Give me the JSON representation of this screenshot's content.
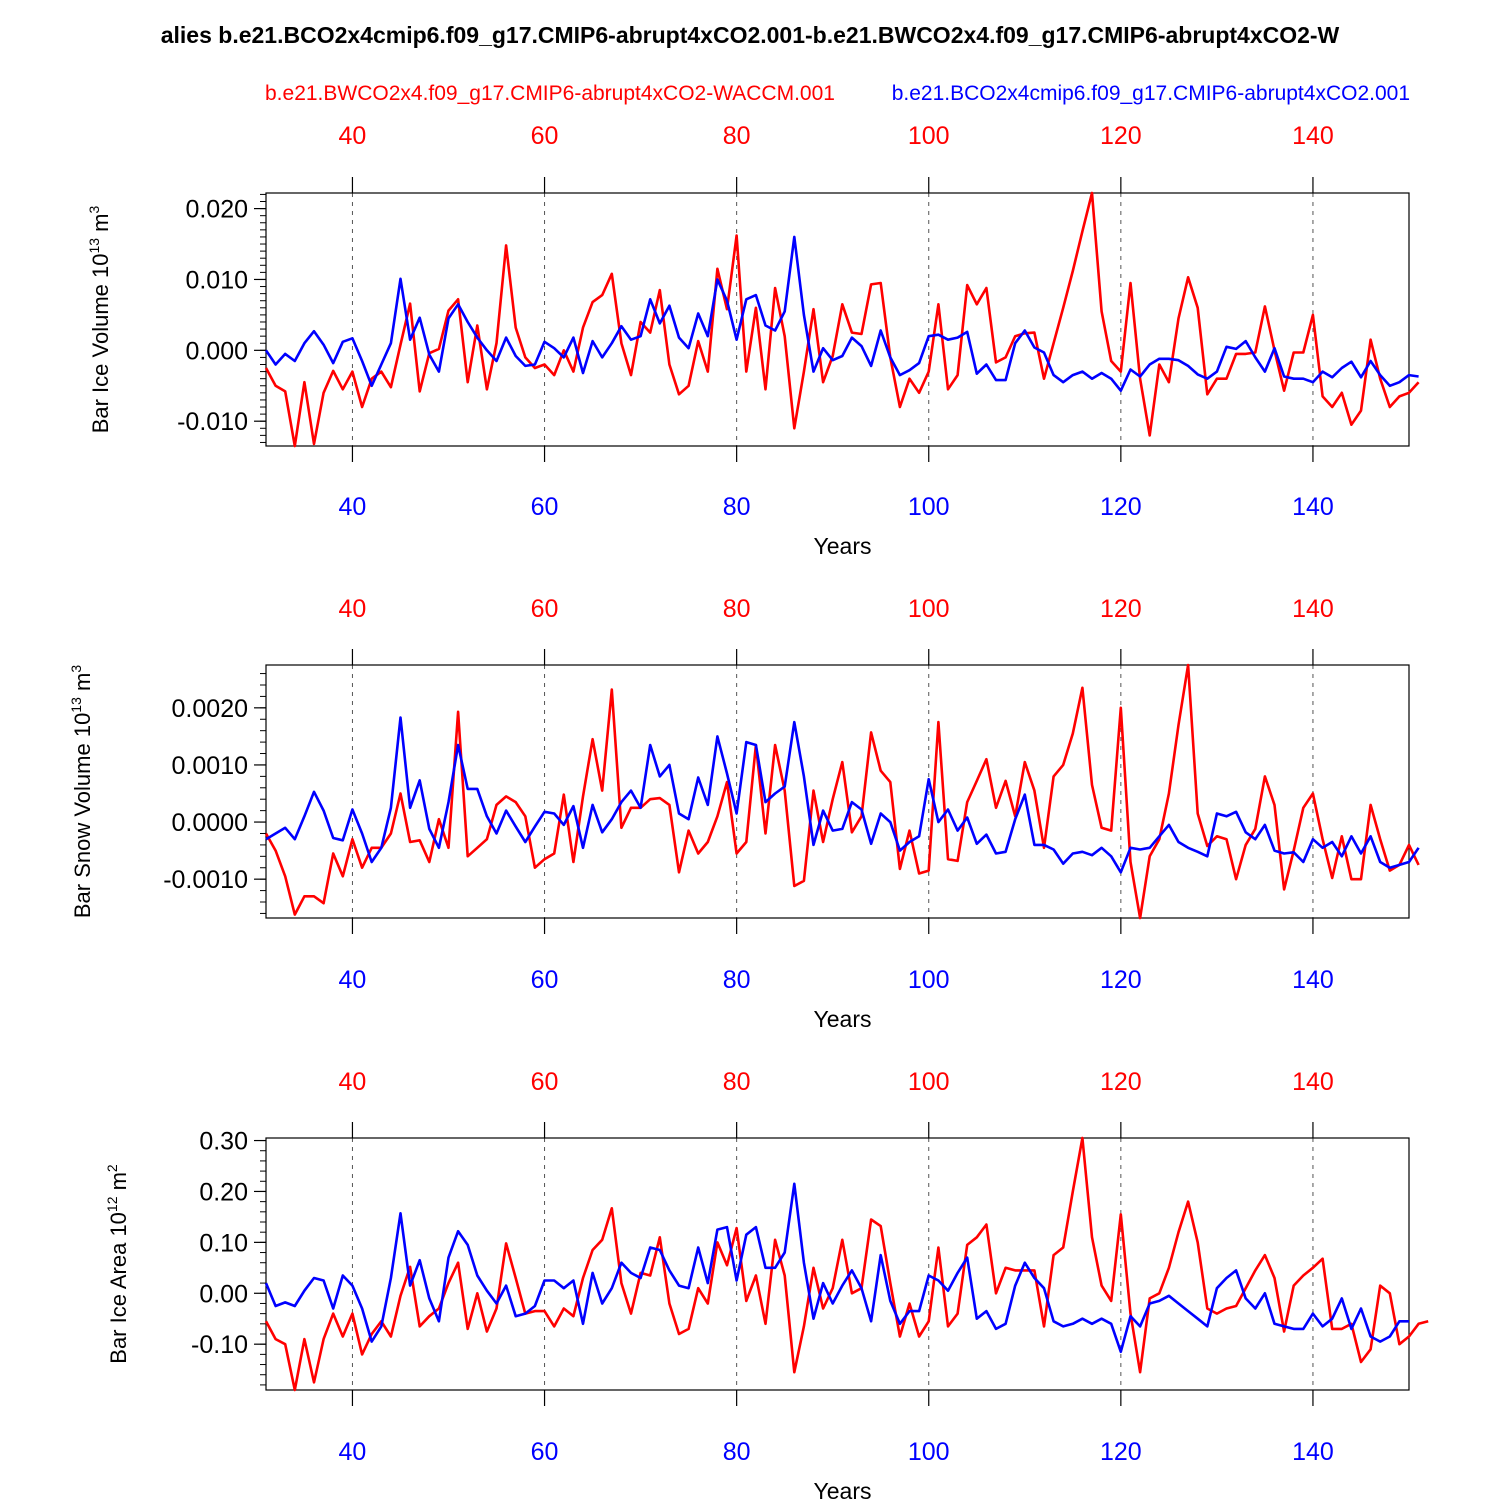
{
  "title": "alies b.e21.BCO2x4cmip6.f09_g17.CMIP6-abrupt4xCO2.001-b.e21.BWCO2x4.f09_g17.CMIP6-abrupt4xCO2-W",
  "legend": {
    "red_label": "b.e21.BWCO2x4.f09_g17.CMIP6-abrupt4xCO2-WACCM.001",
    "blue_label": "b.e21.BCO2x4cmip6.f09_g17.CMIP6-abrupt4xCO2.001"
  },
  "colors": {
    "red": "#ff0000",
    "blue": "#0000ff",
    "axis": "#000000",
    "grid": "#555555"
  },
  "chart_data": [
    {
      "type": "line",
      "ylabel": "Bar Ice Volume 10",
      "ylabel_exp": "13",
      "ylabel_unit": "m",
      "ylabel_unit_exp": "3",
      "xlabel": "Years",
      "xlim": [
        31,
        150
      ],
      "ylim": [
        -0.0135,
        0.0222
      ],
      "yticks": [
        -0.01,
        0.0,
        0.01,
        0.02
      ],
      "ytick_labels": [
        "-0.010",
        "0.000",
        "0.010",
        "0.020"
      ],
      "yminor_step": 0.001,
      "xticks": [
        40,
        60,
        80,
        100,
        120,
        140
      ],
      "x_start": 31,
      "series": [
        {
          "name": "b.e21.BWCO2x4.f09_g17.CMIP6-abrupt4xCO2-WACCM.001",
          "color": "#ff0000",
          "values": [
            -0.0025,
            -0.005,
            -0.0058,
            -0.0135,
            -0.0045,
            -0.0132,
            -0.006,
            -0.0029,
            -0.0055,
            -0.003,
            -0.008,
            -0.004,
            -0.003,
            -0.0052,
            0.0008,
            0.0066,
            -0.0058,
            -0.0004,
            0.0002,
            0.0056,
            0.0072,
            -0.0045,
            0.0035,
            -0.0055,
            0.001,
            0.0148,
            0.0032,
            -0.001,
            -0.0025,
            -0.002,
            -0.0035,
            0.0,
            -0.003,
            0.0032,
            0.0068,
            0.0078,
            0.0108,
            0.001,
            -0.0035,
            0.004,
            0.0025,
            0.0085,
            -0.002,
            -0.0062,
            -0.005,
            0.0013,
            -0.003,
            0.0115,
            0.0058,
            0.0162,
            -0.003,
            0.006,
            -0.0055,
            0.0088,
            0.002,
            -0.011,
            -0.003,
            0.0058,
            -0.0045,
            -0.0008,
            0.0065,
            0.0025,
            0.0023,
            0.0093,
            0.0095,
            -0.001,
            -0.008,
            -0.004,
            -0.006,
            -0.003,
            0.0065,
            -0.0055,
            -0.0035,
            0.0092,
            0.0065,
            0.0088,
            -0.0017,
            -0.001,
            0.002,
            0.0024,
            0.0025,
            -0.004,
            0.001,
            0.006,
            0.0112,
            0.0168,
            0.0222,
            0.0055,
            -0.0015,
            -0.003,
            0.0095,
            -0.004,
            -0.012,
            -0.002,
            -0.0045,
            0.0045,
            0.0103,
            0.006,
            -0.0062,
            -0.004,
            -0.004,
            -0.0005,
            -0.0005,
            -0.0003,
            0.0062,
            0.0,
            -0.0057,
            -0.0003,
            -0.0003,
            0.005,
            -0.0065,
            -0.008,
            -0.006,
            -0.0105,
            -0.0085,
            0.0015,
            -0.004,
            -0.008,
            -0.0065,
            -0.006,
            -0.0045
          ]
        },
        {
          "name": "b.e21.BCO2x4cmip6.f09_g17.CMIP6-abrupt4xCO2.001",
          "color": "#0000ff",
          "values": [
            0.0,
            -0.002,
            -0.0005,
            -0.0015,
            0.001,
            0.0027,
            0.0008,
            -0.0018,
            0.0012,
            0.0017,
            -0.0015,
            -0.005,
            -0.002,
            0.001,
            0.0101,
            0.0015,
            0.0046,
            -0.0006,
            -0.003,
            0.0045,
            0.0065,
            0.004,
            0.0018,
            0.0,
            -0.0015,
            0.0018,
            -0.0008,
            -0.0022,
            -0.002,
            0.0012,
            0.0003,
            -0.001,
            0.0018,
            -0.0032,
            0.0013,
            -0.001,
            0.001,
            0.0034,
            0.0015,
            0.002,
            0.0072,
            0.0038,
            0.0063,
            0.0018,
            0.0003,
            0.0052,
            0.002,
            0.01,
            0.007,
            0.0015,
            0.0072,
            0.0078,
            0.0035,
            0.0028,
            0.0055,
            0.016,
            0.005,
            -0.003,
            0.0003,
            -0.0014,
            -0.0008,
            0.0018,
            0.0006,
            -0.0022,
            0.0028,
            -0.001,
            -0.0035,
            -0.0028,
            -0.0018,
            0.002,
            0.0022,
            0.0015,
            0.0018,
            0.0026,
            -0.0033,
            -0.002,
            -0.0042,
            -0.0042,
            0.001,
            0.0028,
            0.0004,
            -0.0003,
            -0.0035,
            -0.0045,
            -0.0035,
            -0.003,
            -0.004,
            -0.0032,
            -0.004,
            -0.0057,
            -0.0027,
            -0.0037,
            -0.002,
            -0.0012,
            -0.0012,
            -0.0014,
            -0.0022,
            -0.0034,
            -0.004,
            -0.003,
            0.0005,
            0.0002,
            0.0013,
            -0.001,
            -0.003,
            0.0003,
            -0.0037,
            -0.004,
            -0.004,
            -0.0045,
            -0.003,
            -0.0038,
            -0.0025,
            -0.0016,
            -0.0038,
            -0.0015,
            -0.0035,
            -0.005,
            -0.0045,
            -0.0035,
            -0.0037
          ]
        }
      ]
    },
    {
      "type": "line",
      "ylabel": "Bar Snow Volume 10",
      "ylabel_exp": "13",
      "ylabel_unit": "m",
      "ylabel_unit_exp": "3",
      "xlabel": "Years",
      "xlim": [
        31,
        150
      ],
      "ylim": [
        -0.00168,
        0.00275
      ],
      "yticks": [
        -0.001,
        0.0,
        0.001,
        0.002
      ],
      "ytick_labels": [
        "-0.0010",
        "0.0000",
        "0.0010",
        "0.0020"
      ],
      "yminor_step": 0.0002,
      "xticks": [
        40,
        60,
        80,
        100,
        120,
        140
      ],
      "x_start": 31,
      "series": [
        {
          "name": "b.e21.BWCO2x4.f09_g17.CMIP6-abrupt4xCO2-WACCM.001",
          "color": "#ff0000",
          "values": [
            -0.0002,
            -0.0005,
            -0.00095,
            -0.00162,
            -0.0013,
            -0.0013,
            -0.00142,
            -0.00055,
            -0.00095,
            -0.0003,
            -0.0008,
            -0.00045,
            -0.00045,
            -0.0002,
            0.0005,
            -0.00035,
            -0.00032,
            -0.0007,
            5e-05,
            -0.00045,
            0.00193,
            -0.0006,
            -0.00045,
            -0.0003,
            0.0003,
            0.00045,
            0.00035,
            0.0001,
            -0.0008,
            -0.00065,
            -0.00055,
            0.00048,
            -0.0007,
            0.00045,
            0.00145,
            0.00055,
            0.00232,
            -0.0001,
            0.00025,
            0.00025,
            0.0004,
            0.00042,
            0.0003,
            -0.00088,
            -0.00015,
            -0.00055,
            -0.00035,
            0.0001,
            0.0007,
            -0.00055,
            -0.00035,
            0.00135,
            -0.0002,
            0.00135,
            0.00055,
            -0.00112,
            -0.00103,
            0.00055,
            -0.00035,
            0.0004,
            0.00105,
            -0.00018,
            0.0001,
            0.00157,
            0.0009,
            0.0007,
            -0.00082,
            -0.00015,
            -0.0009,
            -0.00085,
            0.00175,
            -0.00065,
            -0.00068,
            0.00035,
            0.00072,
            0.0011,
            0.00025,
            0.00072,
            0.0001,
            0.00105,
            0.00055,
            -0.00045,
            0.0008,
            0.001,
            0.00155,
            0.00235,
            0.00065,
            -0.0001,
            -0.00015,
            0.002,
            -0.0007,
            -0.00168,
            -0.0006,
            -0.0003,
            0.0005,
            0.0017,
            0.00275,
            0.00015,
            -0.00042,
            -0.00025,
            -0.0003,
            -0.001,
            -0.0004,
            -0.00012,
            0.0008,
            0.0003,
            -0.00118,
            -0.0005,
            0.00025,
            0.0005,
            -0.0003,
            -0.00098,
            -0.00025,
            -0.001,
            -0.001,
            0.0003,
            -0.0003,
            -0.00085,
            -0.00075,
            -0.0004,
            -0.00075
          ]
        },
        {
          "name": "b.e21.BCO2x4cmip6.f09_g17.CMIP6-abrupt4xCO2.001",
          "color": "#0000ff",
          "values": [
            -0.0003,
            -0.0002,
            -0.0001,
            -0.0003,
            0.0001,
            0.00053,
            0.0002,
            -0.00028,
            -0.00032,
            0.00022,
            -0.0002,
            -0.0007,
            -0.00045,
            0.00025,
            0.00183,
            0.00025,
            0.00073,
            -0.00012,
            -0.00045,
            0.00035,
            0.00135,
            0.00058,
            0.00058,
            0.0001,
            -0.0002,
            0.0002,
            -8e-05,
            -0.00035,
            -8e-05,
            0.00018,
            0.00015,
            -5e-05,
            0.00028,
            -0.00045,
            0.0003,
            -0.00018,
            5e-05,
            0.00035,
            0.00055,
            0.00025,
            0.00135,
            0.0008,
            0.001,
            0.00015,
            5e-05,
            0.00078,
            0.0003,
            0.0015,
            0.00085,
            0.00015,
            0.0014,
            0.00135,
            0.00035,
            0.0005,
            0.00062,
            0.00175,
            0.0008,
            -0.0004,
            0.0002,
            -0.00015,
            -0.00012,
            0.00035,
            0.00022,
            -0.00038,
            0.00015,
            0.0,
            -0.0005,
            -0.00035,
            -0.00025,
            0.00075,
            0.0,
            0.00022,
            -0.00015,
            8e-05,
            -0.00038,
            -0.00022,
            -0.00055,
            -0.00052,
            5e-05,
            0.00048,
            -0.0004,
            -0.0004,
            -0.00048,
            -0.00073,
            -0.00055,
            -0.00052,
            -0.00058,
            -0.00045,
            -0.0006,
            -0.00088,
            -0.00045,
            -0.00048,
            -0.00045,
            -0.00025,
            -5e-05,
            -0.00035,
            -0.00045,
            -0.00052,
            -0.0006,
            0.00015,
            0.0001,
            0.00018,
            -0.00018,
            -0.0003,
            -5e-05,
            -0.0005,
            -0.00055,
            -0.00053,
            -0.0007,
            -0.0003,
            -0.00045,
            -0.00035,
            -0.0006,
            -0.00025,
            -0.00055,
            -0.00025,
            -0.0007,
            -0.0008,
            -0.00075,
            -0.0007,
            -0.00045
          ]
        }
      ]
    },
    {
      "type": "line",
      "ylabel": "Bar Ice Area 10",
      "ylabel_exp": "12",
      "ylabel_unit": "m",
      "ylabel_unit_exp": "2",
      "xlabel": "Years",
      "xlim": [
        31,
        150
      ],
      "ylim": [
        -0.19,
        0.305
      ],
      "yticks": [
        -0.1,
        0.0,
        0.1,
        0.2,
        0.3
      ],
      "ytick_labels": [
        "-0.10",
        "0.00",
        "0.10",
        "0.20",
        "0.30"
      ],
      "yminor_step": 0.02,
      "xticks": [
        40,
        60,
        80,
        100,
        120,
        140
      ],
      "x_start": 31,
      "series": [
        {
          "name": "b.e21.BWCO2x4.f09_g17.CMIP6-abrupt4xCO2-WACCM.001",
          "color": "#ff0000",
          "values": [
            -0.055,
            -0.09,
            -0.1,
            -0.19,
            -0.09,
            -0.175,
            -0.09,
            -0.04,
            -0.085,
            -0.04,
            -0.12,
            -0.08,
            -0.055,
            -0.085,
            -0.005,
            0.052,
            -0.065,
            -0.045,
            -0.03,
            0.02,
            0.06,
            -0.07,
            0.0,
            -0.075,
            -0.03,
            0.098,
            0.03,
            -0.04,
            -0.035,
            -0.035,
            -0.065,
            -0.03,
            -0.045,
            0.03,
            0.085,
            0.105,
            0.167,
            0.02,
            -0.04,
            0.04,
            0.035,
            0.11,
            -0.02,
            -0.08,
            -0.07,
            0.01,
            -0.02,
            0.1,
            0.055,
            0.128,
            -0.015,
            0.035,
            -0.06,
            0.105,
            0.035,
            -0.155,
            -0.065,
            0.05,
            -0.03,
            0.01,
            0.105,
            0.0,
            0.01,
            0.145,
            0.132,
            0.02,
            -0.085,
            -0.02,
            -0.085,
            -0.055,
            0.09,
            -0.065,
            -0.04,
            0.095,
            0.11,
            0.135,
            0.0,
            0.05,
            0.045,
            0.045,
            0.045,
            -0.065,
            0.075,
            0.09,
            0.2,
            0.305,
            0.11,
            0.015,
            -0.015,
            0.155,
            -0.04,
            -0.155,
            -0.01,
            0.0,
            0.05,
            0.12,
            0.18,
            0.1,
            -0.03,
            -0.04,
            -0.03,
            -0.025,
            0.01,
            0.045,
            0.075,
            0.03,
            -0.075,
            0.015,
            0.035,
            0.05,
            0.068,
            -0.07,
            -0.07,
            -0.06,
            -0.135,
            -0.11,
            0.015,
            0.0,
            -0.1,
            -0.085,
            -0.06,
            -0.055
          ]
        },
        {
          "name": "b.e21.BCO2x4cmip6.f09_g17.CMIP6-abrupt4xCO2.001",
          "color": "#0000ff",
          "values": [
            0.02,
            -0.025,
            -0.018,
            -0.025,
            0.005,
            0.03,
            0.025,
            -0.03,
            0.035,
            0.015,
            -0.03,
            -0.095,
            -0.065,
            0.03,
            0.157,
            0.015,
            0.065,
            -0.01,
            -0.055,
            0.07,
            0.122,
            0.095,
            0.035,
            0.005,
            -0.02,
            0.015,
            -0.045,
            -0.04,
            -0.025,
            0.025,
            0.025,
            0.01,
            0.025,
            -0.06,
            0.04,
            -0.02,
            0.01,
            0.06,
            0.04,
            0.03,
            0.09,
            0.085,
            0.045,
            0.015,
            0.01,
            0.09,
            0.02,
            0.125,
            0.13,
            0.025,
            0.115,
            0.13,
            0.05,
            0.05,
            0.08,
            0.215,
            0.06,
            -0.05,
            0.02,
            -0.02,
            0.015,
            0.045,
            0.01,
            -0.055,
            0.075,
            -0.015,
            -0.06,
            -0.035,
            -0.035,
            0.035,
            0.025,
            0.005,
            0.04,
            0.07,
            -0.05,
            -0.035,
            -0.07,
            -0.06,
            0.015,
            0.06,
            0.03,
            0.01,
            -0.055,
            -0.065,
            -0.06,
            -0.05,
            -0.06,
            -0.05,
            -0.06,
            -0.115,
            -0.045,
            -0.065,
            -0.02,
            -0.015,
            -0.005,
            -0.02,
            -0.035,
            -0.05,
            -0.065,
            0.01,
            0.03,
            0.045,
            -0.01,
            -0.03,
            0.0,
            -0.06,
            -0.065,
            -0.07,
            -0.07,
            -0.04,
            -0.065,
            -0.05,
            -0.01,
            -0.07,
            -0.03,
            -0.085,
            -0.095,
            -0.085,
            -0.055,
            -0.055
          ]
        }
      ]
    }
  ]
}
